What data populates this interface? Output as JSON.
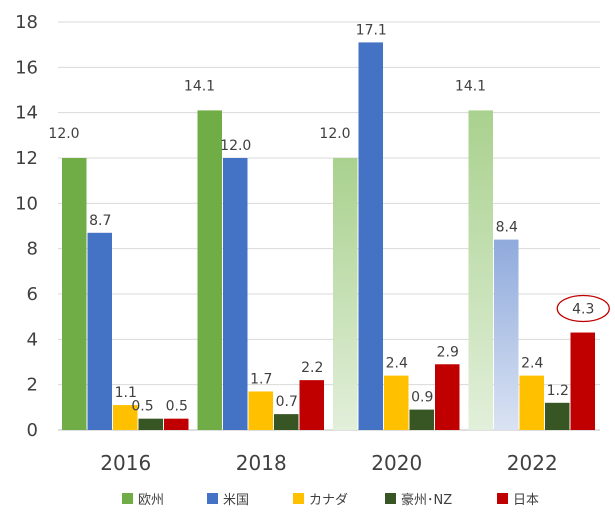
{
  "chart_data": {
    "type": "bar",
    "title": "",
    "xlabel": "",
    "ylabel": "",
    "ylim": [
      0,
      18
    ],
    "yticks": [
      0,
      2,
      4,
      6,
      8,
      10,
      12,
      14,
      16,
      18
    ],
    "grid": true,
    "legend_position": "bottom",
    "categories": [
      "2016",
      "2018",
      "2020",
      "2022"
    ],
    "series": [
      {
        "name": "欧州",
        "color": "#70ad47",
        "values": [
          12.0,
          14.1,
          12.0,
          14.1
        ],
        "labels": [
          "12.0",
          "14.1",
          "12.0",
          "14.1"
        ]
      },
      {
        "name": "米国",
        "color": "#4472c4",
        "values": [
          8.7,
          12.0,
          17.1,
          8.4
        ],
        "labels": [
          "8.7",
          "12.0",
          "17.1",
          "8.4"
        ]
      },
      {
        "name": "カナダ",
        "color": "#ffc000",
        "values": [
          1.1,
          1.7,
          2.4,
          2.4
        ],
        "labels": [
          "1.1",
          "1.7",
          "2.4",
          "2.4"
        ]
      },
      {
        "name": "豪州･NZ",
        "color": "#375623",
        "values": [
          0.5,
          0.7,
          0.9,
          1.2
        ],
        "labels": [
          "0.5",
          "0.7",
          "0.9",
          "1.2"
        ]
      },
      {
        "name": "日本",
        "color": "#c00000",
        "values": [
          0.5,
          2.2,
          2.9,
          4.3
        ],
        "labels": [
          "0.5",
          "2.2",
          "2.9",
          "4.3"
        ]
      }
    ],
    "gradient_bars": [
      {
        "series": 0,
        "category": 2
      },
      {
        "series": 0,
        "category": 3
      },
      {
        "series": 1,
        "category": 3
      }
    ],
    "highlight": {
      "series": 4,
      "category": 3,
      "shape": "ellipse",
      "color": "#c00000"
    }
  }
}
